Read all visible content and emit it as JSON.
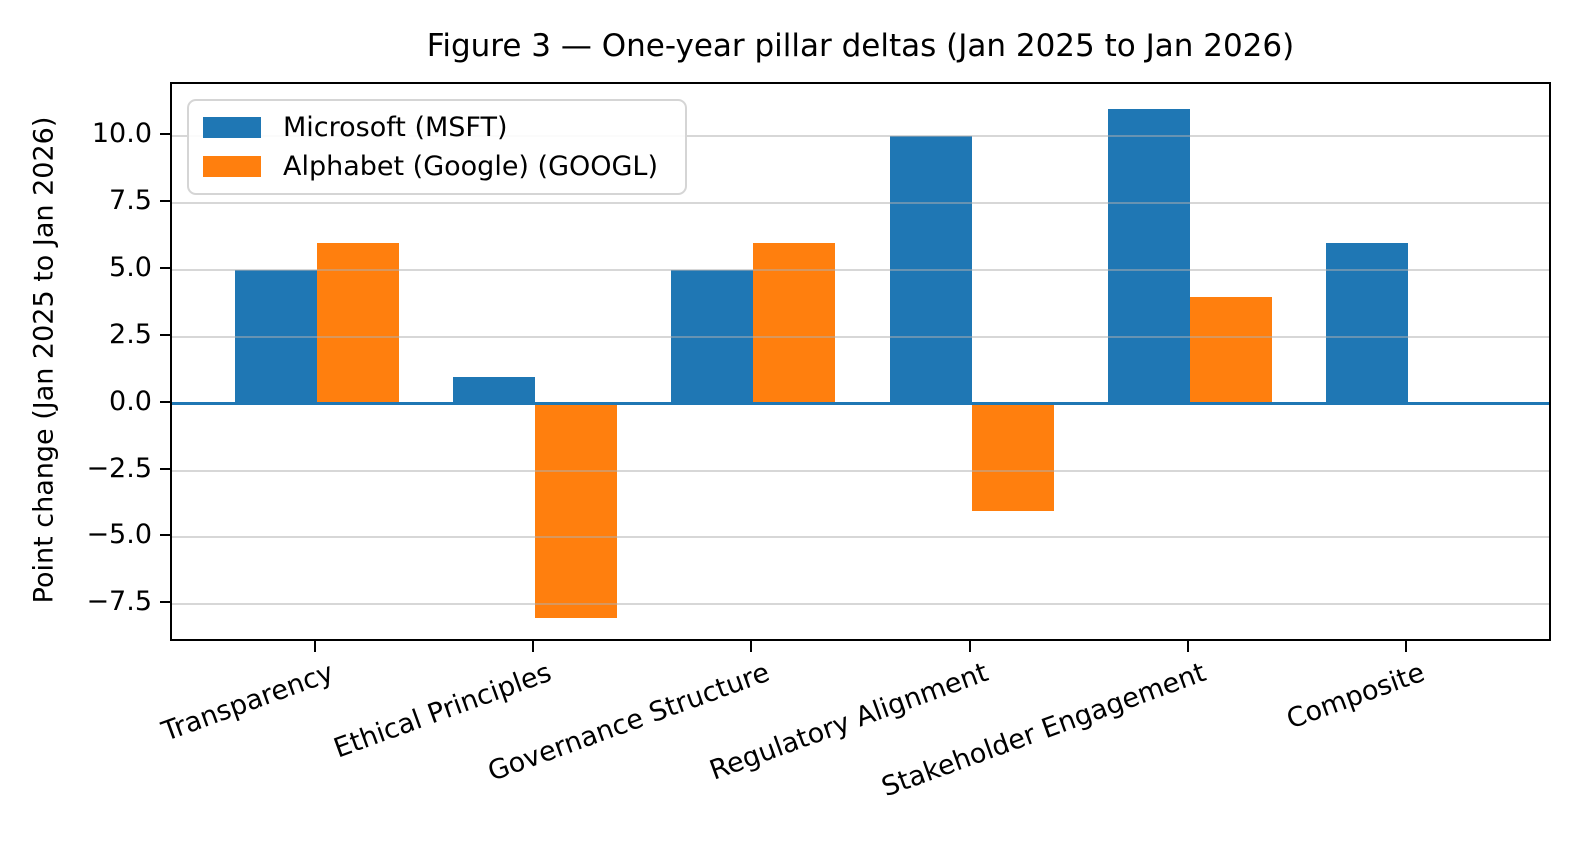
{
  "chart_data": {
    "type": "bar",
    "title": "Figure 3 — One-year pillar deltas (Jan 2025 to Jan 2026)",
    "ylabel": "Point change (Jan 2025 to Jan 2026)",
    "categories": [
      "Transparency",
      "Ethical Principles",
      "Governance Structure",
      "Regulatory Alignment",
      "Stakeholder Engagement",
      "Composite"
    ],
    "series": [
      {
        "name": "Microsoft (MSFT)",
        "color": "#1f77b4",
        "values": [
          5,
          1,
          5,
          10,
          11,
          6
        ]
      },
      {
        "name": "Alphabet (Google) (GOOGL)",
        "color": "#ff7f0e",
        "values": [
          6,
          -8,
          6,
          -4,
          4,
          0
        ]
      }
    ],
    "yticks": [
      10.0,
      7.5,
      5.0,
      2.5,
      0.0,
      -2.5,
      -5.0,
      -7.5
    ],
    "ylim": [
      -8.95,
      11.95
    ],
    "xlim_units": [
      -0.665,
      5.665
    ],
    "bar_width_units": 0.376,
    "x_tick_rotation_deg": 20,
    "grid": true,
    "grid_color": "rgba(176,176,176,0.5)",
    "legend_position": "upper left",
    "zero_line_color": "#1f77b4",
    "text_color": "#000000"
  }
}
